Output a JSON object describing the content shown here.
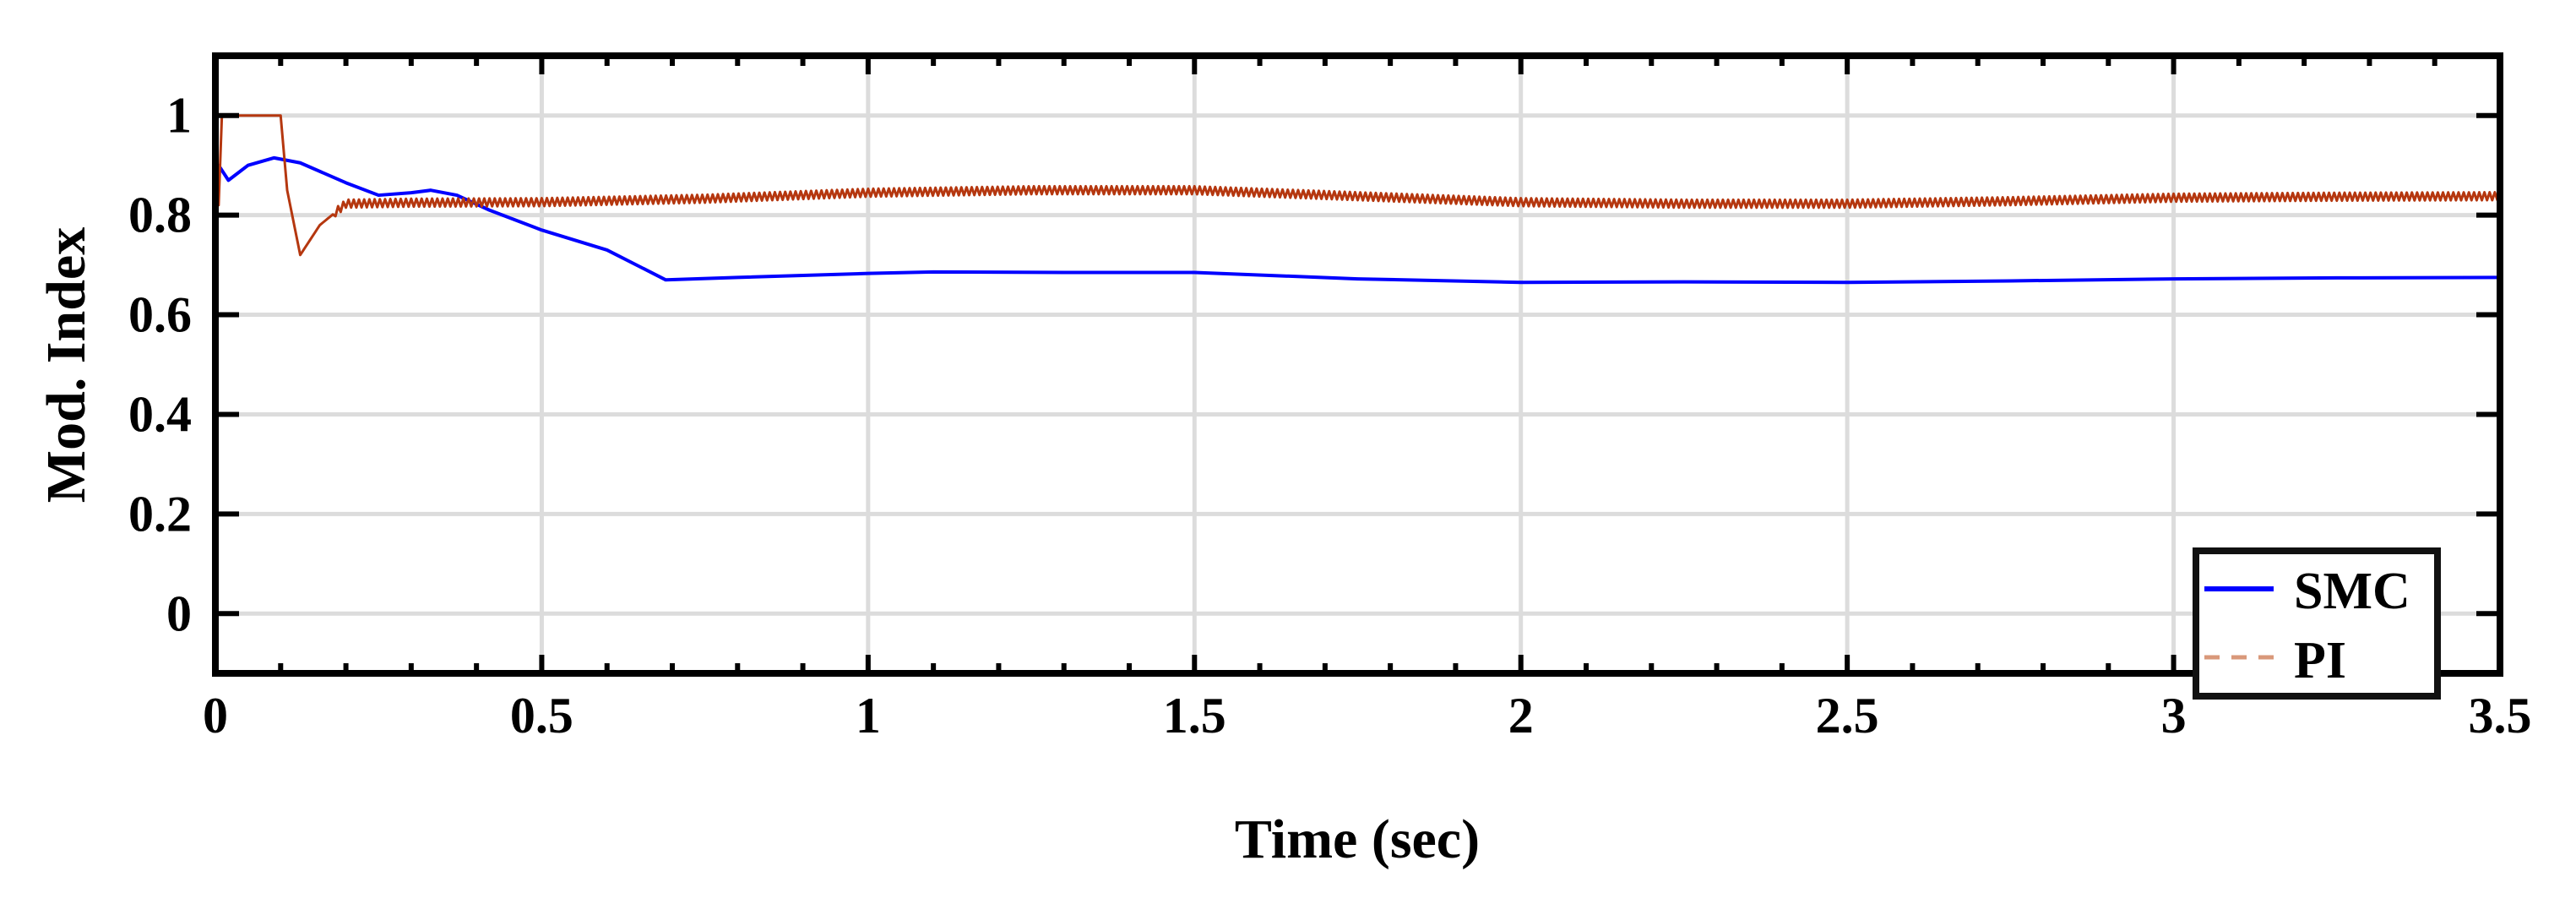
{
  "chart_data": {
    "type": "line",
    "title": "",
    "xlabel": "Time (sec)",
    "ylabel": "Mod. Index",
    "xlim": [
      0,
      3.5
    ],
    "ylim": [
      -0.12,
      1.12
    ],
    "xticks": [
      0,
      0.5,
      1,
      1.5,
      2,
      2.5,
      3,
      3.5
    ],
    "xtick_labels": [
      "0",
      "0.5",
      "1",
      "1.5",
      "2",
      "2.5",
      "3",
      "3.5"
    ],
    "yticks": [
      0,
      0.2,
      0.4,
      0.6,
      0.8,
      1
    ],
    "ytick_labels": [
      "0",
      "0.2",
      "0.4",
      "0.6",
      "0.8",
      "1"
    ],
    "grid": true,
    "legend_position": "bottom-right",
    "series": [
      {
        "name": "SMC",
        "color": "#0000ff",
        "style": "solid",
        "x": [
          0,
          0.005,
          0.02,
          0.05,
          0.09,
          0.13,
          0.2,
          0.25,
          0.3,
          0.33,
          0.37,
          0.42,
          0.5,
          0.6,
          0.69,
          0.8,
          1.0,
          1.1,
          1.3,
          1.5,
          1.75,
          2.0,
          2.25,
          2.5,
          2.75,
          3.0,
          3.25,
          3.5
        ],
        "y": [
          0.8,
          0.9,
          0.87,
          0.9,
          0.915,
          0.905,
          0.865,
          0.84,
          0.845,
          0.85,
          0.84,
          0.81,
          0.77,
          0.73,
          0.67,
          0.675,
          0.683,
          0.686,
          0.685,
          0.685,
          0.672,
          0.665,
          0.666,
          0.665,
          0.668,
          0.672,
          0.674,
          0.675
        ]
      },
      {
        "name": "PI",
        "color": "#b5370f",
        "style": "dashed",
        "x": [
          0,
          0.005,
          0.01,
          0.1,
          0.11,
          0.13,
          0.16,
          0.2,
          0.3,
          0.5,
          0.75,
          1.0,
          1.25,
          1.5,
          1.75,
          2.0,
          2.25,
          2.5,
          2.75,
          3.0,
          3.25,
          3.5
        ],
        "y": [
          0.9,
          0.82,
          1.0,
          1.0,
          0.85,
          0.72,
          0.78,
          0.823,
          0.825,
          0.826,
          0.833,
          0.845,
          0.85,
          0.85,
          0.838,
          0.826,
          0.823,
          0.823,
          0.828,
          0.835,
          0.837,
          0.838
        ]
      }
    ]
  }
}
